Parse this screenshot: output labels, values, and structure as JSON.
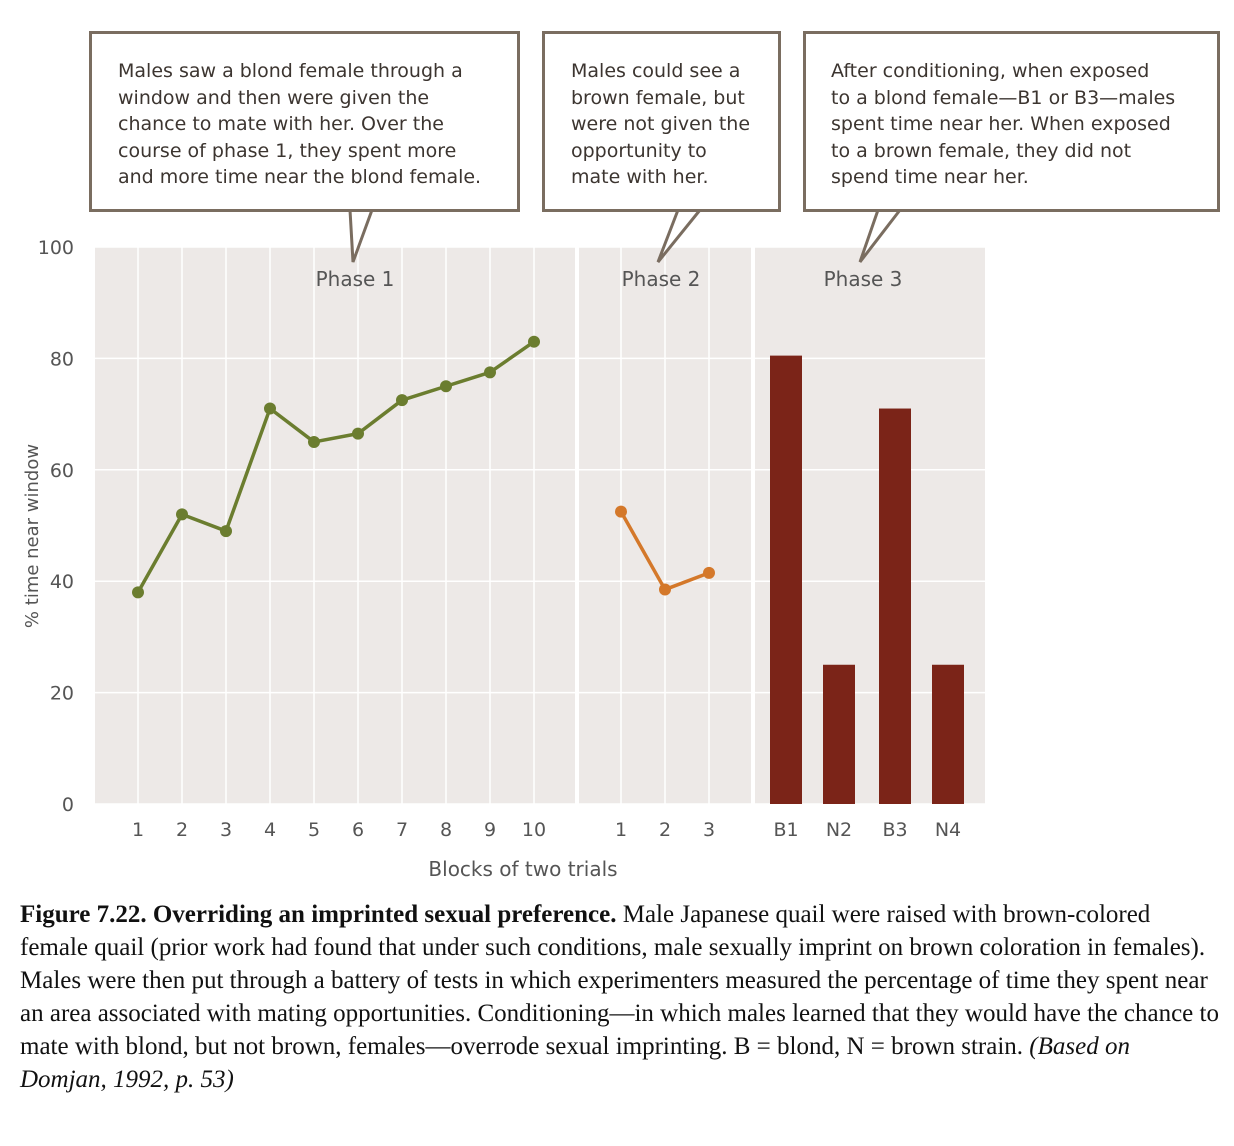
{
  "callouts": [
    {
      "text": "Males saw a blond female through a\nwindow and then were given the\nchance to mate with her. Over the\ncourse of phase 1, they spent more\nand more time near the blond female."
    },
    {
      "text": "Males could see a\nbrown female, but\nwere not given the\nopportunity to\nmate with her."
    },
    {
      "text": "After conditioning, when exposed\nto a blond female—B1 or B3—males\nspent time near her. When exposed\nto a brown female, they did not\nspend time near her."
    }
  ],
  "caption": {
    "bold": "Figure 7.22. Overriding an imprinted sexual preference.",
    "text": " Male Japanese quail were raised with brown-colored female quail (prior work had found that under such conditions, male sexually imprint on brown coloration in females). Males were then put through a battery of tests in which experimenters measured the percentage of time they spent near an area associated with mating opportunities. Conditioning—in which males learned that they would have the chance to mate with blond, but not brown, females—overrode sexual imprinting. B = blond, N = brown strain.",
    "italic": " (Based on Domjan, 1992, p. 53)"
  },
  "chart_data": {
    "type": "line",
    "ylabel": "% time near window",
    "xlabel": "Blocks of two trials",
    "ylim": [
      0,
      100
    ],
    "yticks": [
      0,
      20,
      40,
      60,
      80,
      100
    ],
    "grid": true,
    "panel_background": "#ede9e7",
    "phases": [
      {
        "title": "Phase 1",
        "type": "line",
        "color": "#6b7d2f",
        "categories": [
          "1",
          "2",
          "3",
          "4",
          "5",
          "6",
          "7",
          "8",
          "9",
          "10"
        ],
        "values": [
          38,
          52,
          49,
          71,
          65,
          66.5,
          72.5,
          75,
          77.5,
          83
        ]
      },
      {
        "title": "Phase 2",
        "type": "line",
        "color": "#d4782a",
        "categories": [
          "1",
          "2",
          "3"
        ],
        "values": [
          52.5,
          38.5,
          41.5
        ]
      },
      {
        "title": "Phase 3",
        "type": "bar",
        "color": "#7b2418",
        "categories": [
          "B1",
          "N2",
          "B3",
          "N4"
        ],
        "values": [
          80.5,
          25,
          71,
          25
        ]
      }
    ]
  }
}
